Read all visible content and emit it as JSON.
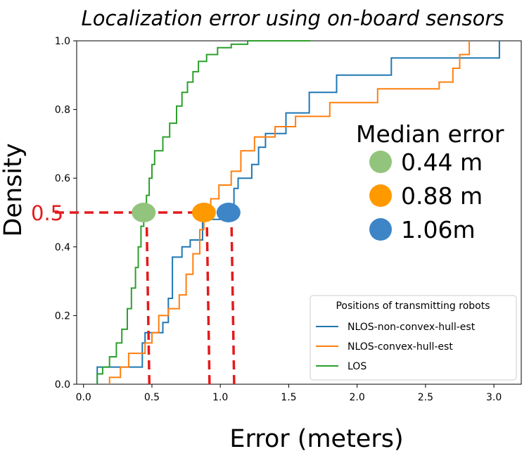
{
  "chart_data": {
    "type": "line",
    "title": "Localization error using on-board sensors",
    "xlabel": "Error (meters)",
    "ylabel": "Density",
    "xlim": [
      -0.05,
      3.2
    ],
    "ylim": [
      0.0,
      1.0
    ],
    "xticks": [
      "0.0",
      "0.5",
      "1.0",
      "1.5",
      "2.0",
      "2.5",
      "3.0"
    ],
    "yticks": [
      "0.0",
      "0.2",
      "0.4",
      "0.6",
      "0.8",
      "1.0"
    ],
    "grid": false,
    "legend": {
      "title": "Positions of transmitting robots",
      "placement": "lower-right"
    },
    "series": [
      {
        "name": "NLOS-non-convex-hull-est",
        "color": "#1f77b4",
        "x": [
          0.1,
          0.1,
          0.17,
          0.17,
          0.43,
          0.43,
          0.45,
          0.45,
          0.58,
          0.58,
          0.62,
          0.62,
          0.65,
          0.65,
          0.72,
          0.72,
          0.78,
          0.78,
          0.87,
          0.87,
          1.07,
          1.07,
          1.1,
          1.1,
          1.13,
          1.13,
          1.23,
          1.23,
          1.28,
          1.28,
          1.33,
          1.33,
          1.48,
          1.48,
          1.65,
          1.65,
          1.85,
          1.85,
          2.25,
          2.25,
          3.04,
          3.04
        ],
        "y": [
          0.0,
          0.05,
          0.05,
          0.05,
          0.05,
          0.12,
          0.12,
          0.15,
          0.15,
          0.18,
          0.18,
          0.25,
          0.25,
          0.37,
          0.37,
          0.4,
          0.4,
          0.42,
          0.42,
          0.48,
          0.48,
          0.52,
          0.52,
          0.57,
          0.57,
          0.6,
          0.6,
          0.64,
          0.64,
          0.69,
          0.69,
          0.73,
          0.73,
          0.79,
          0.79,
          0.85,
          0.85,
          0.9,
          0.9,
          0.95,
          0.95,
          1.0
        ]
      },
      {
        "name": "NLOS-convex-hull-est",
        "color": "#ff7f0e",
        "x": [
          0.19,
          0.19,
          0.27,
          0.27,
          0.33,
          0.33,
          0.45,
          0.45,
          0.5,
          0.5,
          0.55,
          0.55,
          0.62,
          0.62,
          0.7,
          0.7,
          0.75,
          0.75,
          0.8,
          0.8,
          0.85,
          0.85,
          0.88,
          0.88,
          0.93,
          0.93,
          0.99,
          0.99,
          1.08,
          1.08,
          1.15,
          1.15,
          1.25,
          1.25,
          1.4,
          1.4,
          1.55,
          1.55,
          1.8,
          1.8,
          2.15,
          2.15,
          2.6,
          2.6,
          2.7,
          2.7,
          2.75,
          2.75,
          2.82,
          2.82
        ],
        "y": [
          0.0,
          0.02,
          0.02,
          0.05,
          0.05,
          0.09,
          0.09,
          0.12,
          0.12,
          0.15,
          0.15,
          0.2,
          0.2,
          0.22,
          0.22,
          0.26,
          0.26,
          0.32,
          0.32,
          0.38,
          0.38,
          0.45,
          0.45,
          0.5,
          0.5,
          0.54,
          0.54,
          0.58,
          0.58,
          0.62,
          0.62,
          0.68,
          0.68,
          0.72,
          0.72,
          0.75,
          0.75,
          0.78,
          0.78,
          0.82,
          0.82,
          0.86,
          0.86,
          0.88,
          0.88,
          0.92,
          0.92,
          0.96,
          0.96,
          1.0
        ]
      },
      {
        "name": "LOS",
        "color": "#2ca02c",
        "x": [
          0.1,
          0.1,
          0.14,
          0.14,
          0.19,
          0.19,
          0.24,
          0.24,
          0.28,
          0.28,
          0.32,
          0.32,
          0.35,
          0.35,
          0.38,
          0.38,
          0.4,
          0.4,
          0.42,
          0.42,
          0.44,
          0.44,
          0.46,
          0.46,
          0.48,
          0.48,
          0.5,
          0.5,
          0.52,
          0.52,
          0.58,
          0.58,
          0.63,
          0.63,
          0.68,
          0.68,
          0.72,
          0.72,
          0.76,
          0.76,
          0.8,
          0.8,
          0.84,
          0.84,
          0.9,
          0.9,
          0.98,
          0.98,
          1.08,
          1.08,
          1.2,
          1.2,
          1.66,
          1.66
        ],
        "y": [
          0.0,
          0.03,
          0.03,
          0.05,
          0.05,
          0.08,
          0.08,
          0.12,
          0.12,
          0.16,
          0.16,
          0.22,
          0.22,
          0.28,
          0.28,
          0.34,
          0.34,
          0.4,
          0.4,
          0.46,
          0.46,
          0.5,
          0.5,
          0.55,
          0.55,
          0.6,
          0.6,
          0.64,
          0.64,
          0.68,
          0.68,
          0.72,
          0.72,
          0.76,
          0.76,
          0.81,
          0.81,
          0.85,
          0.85,
          0.88,
          0.88,
          0.91,
          0.91,
          0.94,
          0.94,
          0.96,
          0.96,
          0.98,
          0.98,
          0.99,
          0.99,
          1.0,
          1.0,
          1.0
        ]
      }
    ],
    "annotations": {
      "median_title": "Median error",
      "median_level_label": "0.5",
      "median_level": 0.5,
      "line_color": "#e41a1c",
      "markers": [
        {
          "label": "0.44 m",
          "x": 0.44,
          "color": "#93c47d"
        },
        {
          "label": "0.88 m",
          "x": 0.88,
          "color": "#ff9900"
        },
        {
          "label": "1.06m",
          "x": 1.06,
          "color": "#3d85c6"
        }
      ]
    }
  }
}
